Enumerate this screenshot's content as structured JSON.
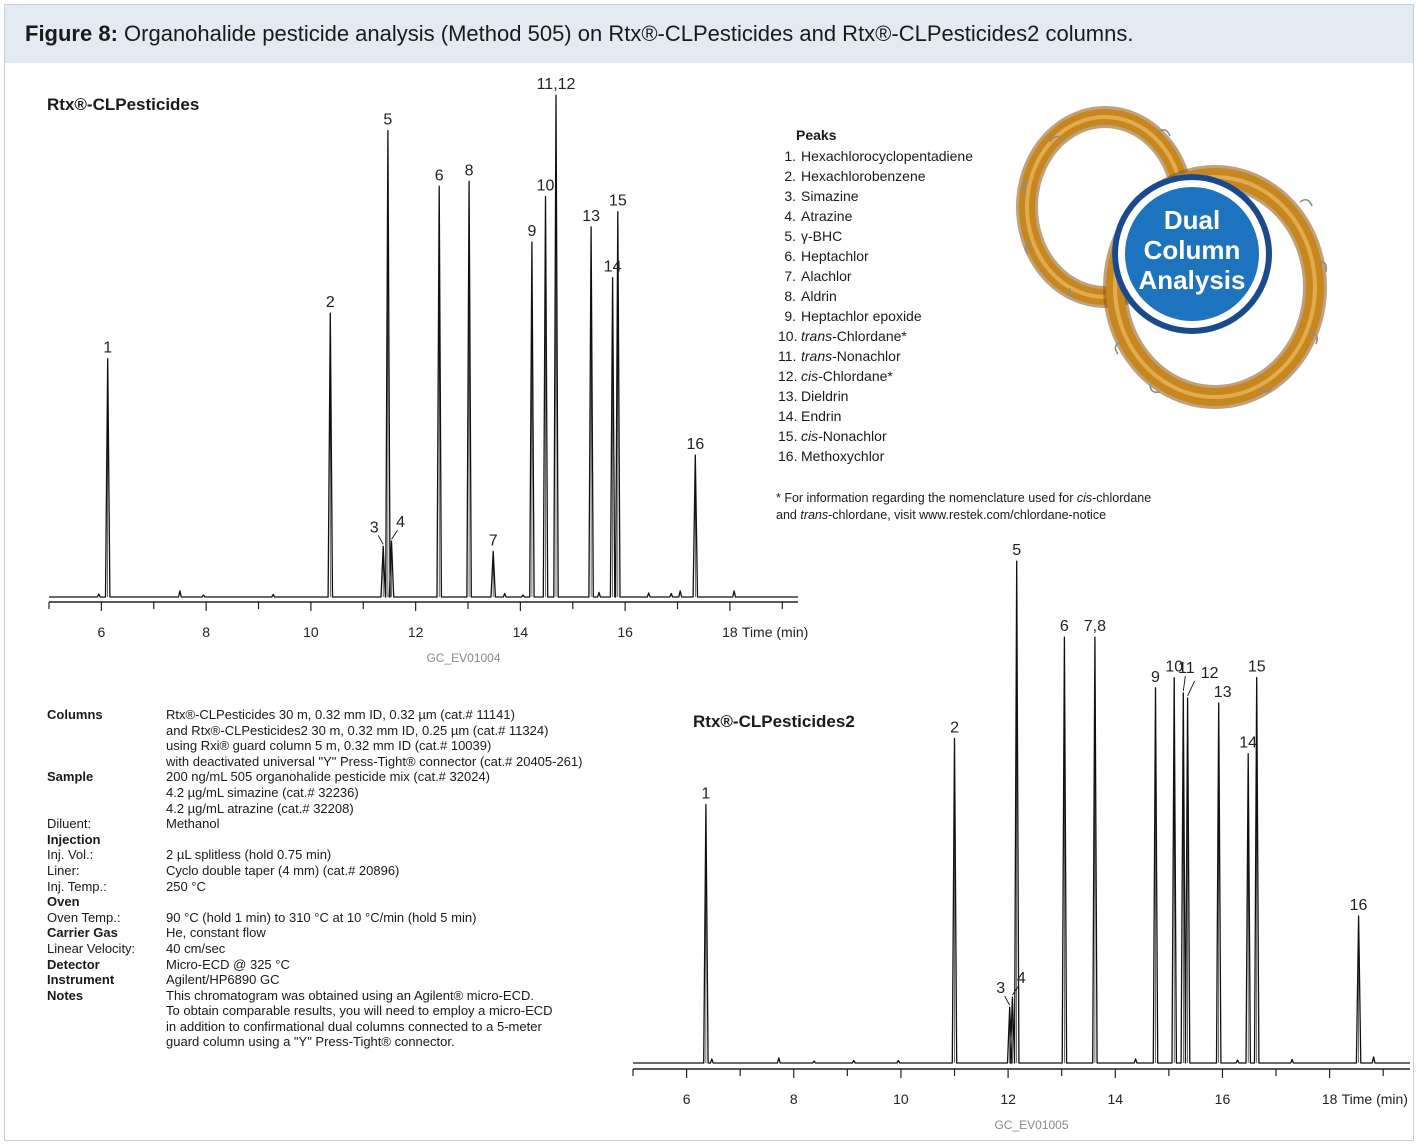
{
  "figure": {
    "label": "Figure 8:",
    "caption": "Organohalide pesticide analysis (Method 505) on Rtx®-CLPesticides and Rtx®-CLPesticides2 columns."
  },
  "chart_data": [
    {
      "type": "line",
      "title": "Rtx®-CLPesticides",
      "xlabel": "Time (min)",
      "x_ticks": [
        6,
        8,
        10,
        12,
        14,
        16,
        18
      ],
      "xlim": [
        5,
        19.3
      ],
      "ylim": [
        0,
        100
      ],
      "code": "GC_EV01004",
      "peaks": [
        {
          "label": "1",
          "x": 6.12,
          "y": 47
        },
        {
          "label": "2",
          "x": 10.37,
          "y": 56
        },
        {
          "label": "3",
          "x": 11.38,
          "y": 10
        },
        {
          "label": "4",
          "x": 11.54,
          "y": 11
        },
        {
          "label": "5",
          "x": 11.47,
          "y": 92
        },
        {
          "label": "6",
          "x": 12.45,
          "y": 81
        },
        {
          "label": "7",
          "x": 13.48,
          "y": 9
        },
        {
          "label": "8",
          "x": 13.02,
          "y": 82
        },
        {
          "label": "9",
          "x": 14.22,
          "y": 70
        },
        {
          "label": "10",
          "x": 14.48,
          "y": 79
        },
        {
          "label": "11,12",
          "x": 14.68,
          "y": 99
        },
        {
          "label": "13",
          "x": 15.35,
          "y": 73
        },
        {
          "label": "14",
          "x": 15.76,
          "y": 63
        },
        {
          "label": "15",
          "x": 15.86,
          "y": 76
        },
        {
          "label": "16",
          "x": 17.34,
          "y": 28
        }
      ],
      "minor_peaks": [
        {
          "x": 5.95,
          "y": 0.6
        },
        {
          "x": 7.5,
          "y": 1.2
        },
        {
          "x": 7.95,
          "y": 0.4
        },
        {
          "x": 9.28,
          "y": 0.5
        },
        {
          "x": 13.7,
          "y": 0.7
        },
        {
          "x": 14.05,
          "y": 0.4
        },
        {
          "x": 15.5,
          "y": 0.9
        },
        {
          "x": 16.45,
          "y": 0.8
        },
        {
          "x": 16.88,
          "y": 0.7
        },
        {
          "x": 17.05,
          "y": 1.2
        },
        {
          "x": 18.08,
          "y": 1.2
        }
      ]
    },
    {
      "type": "line",
      "title": "Rtx®-CLPesticides2",
      "xlabel": "Time (min)",
      "x_ticks": [
        6,
        8,
        10,
        12,
        14,
        16,
        18
      ],
      "xlim": [
        5,
        19.5
      ],
      "ylim": [
        0,
        100
      ],
      "code": "GC_EV01005",
      "peaks": [
        {
          "label": "1",
          "x": 6.36,
          "y": 51
        },
        {
          "label": "2",
          "x": 11.0,
          "y": 64
        },
        {
          "label": "3",
          "x": 12.03,
          "y": 11
        },
        {
          "label": "4",
          "x": 12.08,
          "y": 13
        },
        {
          "label": "5",
          "x": 12.16,
          "y": 99
        },
        {
          "label": "6",
          "x": 13.05,
          "y": 84
        },
        {
          "label": "7,8",
          "x": 13.62,
          "y": 84
        },
        {
          "label": "9",
          "x": 14.75,
          "y": 74
        },
        {
          "label": "10",
          "x": 15.1,
          "y": 76
        },
        {
          "label": "11",
          "x": 15.27,
          "y": 73
        },
        {
          "label": "12",
          "x": 15.35,
          "y": 72
        },
        {
          "label": "13",
          "x": 15.93,
          "y": 71
        },
        {
          "label": "14",
          "x": 16.48,
          "y": 61
        },
        {
          "label": "15",
          "x": 16.64,
          "y": 76
        },
        {
          "label": "16",
          "x": 18.54,
          "y": 29
        }
      ],
      "minor_peaks": [
        {
          "x": 6.47,
          "y": 0.8
        },
        {
          "x": 7.72,
          "y": 1.0
        },
        {
          "x": 8.38,
          "y": 0.4
        },
        {
          "x": 9.12,
          "y": 0.5
        },
        {
          "x": 9.95,
          "y": 0.5
        },
        {
          "x": 14.38,
          "y": 0.8
        },
        {
          "x": 16.28,
          "y": 0.6
        },
        {
          "x": 17.3,
          "y": 0.7
        },
        {
          "x": 18.82,
          "y": 1.2
        }
      ]
    }
  ],
  "peaks_legend": {
    "heading": "Peaks",
    "items": [
      {
        "num": "1.",
        "pre": "",
        "ital": "",
        "text": "Hexachlorocyclopentadiene"
      },
      {
        "num": "2.",
        "pre": "",
        "ital": "",
        "text": "Hexachlorobenzene"
      },
      {
        "num": "3.",
        "pre": "",
        "ital": "",
        "text": "Simazine"
      },
      {
        "num": "4.",
        "pre": "",
        "ital": "",
        "text": "Atrazine"
      },
      {
        "num": "5.",
        "pre": "",
        "ital": "",
        "text": "γ-BHC"
      },
      {
        "num": "6.",
        "pre": "",
        "ital": "",
        "text": "Heptachlor"
      },
      {
        "num": "7.",
        "pre": "",
        "ital": "",
        "text": "Alachlor"
      },
      {
        "num": "8.",
        "pre": "",
        "ital": "",
        "text": "Aldrin"
      },
      {
        "num": "9.",
        "pre": "",
        "ital": "",
        "text": "Heptachlor epoxide"
      },
      {
        "num": "10.",
        "pre": "",
        "ital": "trans",
        "text": "-Chlordane*"
      },
      {
        "num": "11.",
        "pre": "",
        "ital": "trans",
        "text": "-Nonachlor"
      },
      {
        "num": "12.",
        "pre": "",
        "ital": "cis",
        "text": "-Chlordane*"
      },
      {
        "num": "13.",
        "pre": "",
        "ital": "",
        "text": "Dieldrin"
      },
      {
        "num": "14.",
        "pre": "",
        "ital": "",
        "text": "Endrin"
      },
      {
        "num": "15.",
        "pre": "",
        "ital": "cis",
        "text": "-Nonachlor"
      },
      {
        "num": "16.",
        "pre": "",
        "ital": "",
        "text": "Methoxychlor"
      }
    ]
  },
  "footnote": {
    "l1_a": "* For information regarding the nomenclature used for ",
    "l1_i": "cis",
    "l1_b": "-chlordane",
    "l2_a": "and ",
    "l2_i": "trans",
    "l2_b": "-chlordane, visit www.restek.com/chlordane-notice"
  },
  "badge": {
    "line1": "Dual",
    "line2": "Column",
    "line3": "Analysis",
    "color_outer": "#1a4a8c",
    "color_inner": "#1e73be",
    "coil_color": "#c8861e"
  },
  "conditions": [
    {
      "label": "Columns",
      "bold": true,
      "values": [
        "Rtx®-CLPesticides 30 m, 0.32 mm ID, 0.32 µm (cat.# 11141)",
        "and Rtx®-CLPesticides2 30 m, 0.32 mm ID, 0.25 µm (cat.# 11324)",
        "using Rxi® guard column 5 m, 0.32 mm ID (cat.# 10039)",
        "with deactivated universal \"Y\" Press-Tight® connector (cat.# 20405-261)"
      ]
    },
    {
      "label": "Sample",
      "bold": true,
      "values": [
        "200 ng/mL 505 organohalide pesticide mix (cat.# 32024)",
        "4.2 µg/mL simazine (cat.# 32236)",
        "4.2 µg/mL atrazine (cat.# 32208)"
      ]
    },
    {
      "label": "Diluent:",
      "bold": false,
      "values": [
        "Methanol"
      ]
    },
    {
      "label": "Injection",
      "bold": true,
      "values": [
        ""
      ]
    },
    {
      "label": "Inj. Vol.:",
      "bold": false,
      "values": [
        "2 µL splitless (hold 0.75 min)"
      ]
    },
    {
      "label": "Liner:",
      "bold": false,
      "values": [
        "Cyclo double taper (4 mm) (cat.# 20896)"
      ]
    },
    {
      "label": "Inj. Temp.:",
      "bold": false,
      "values": [
        "250 °C"
      ]
    },
    {
      "label": "Oven",
      "bold": true,
      "values": [
        ""
      ]
    },
    {
      "label": "Oven Temp.:",
      "bold": false,
      "values": [
        "90 °C (hold 1 min) to 310 °C at 10 °C/min (hold 5 min)"
      ]
    },
    {
      "label": "Carrier Gas",
      "bold": true,
      "values": [
        "He, constant flow"
      ]
    },
    {
      "label": "Linear Velocity:",
      "bold": false,
      "values": [
        "40 cm/sec"
      ]
    },
    {
      "label": "Detector",
      "bold": true,
      "values": [
        "Micro-ECD @ 325 °C"
      ]
    },
    {
      "label": "Instrument",
      "bold": true,
      "values": [
        "Agilent/HP6890 GC"
      ]
    },
    {
      "label": "Notes",
      "bold": true,
      "values": [
        "This chromatogram was obtained using an Agilent® micro-ECD.",
        "To obtain comparable results, you will need to employ a micro-ECD",
        "in addition to confirmational dual columns connected to a 5-meter",
        "guard column using a \"Y\" Press-Tight® connector."
      ]
    }
  ]
}
